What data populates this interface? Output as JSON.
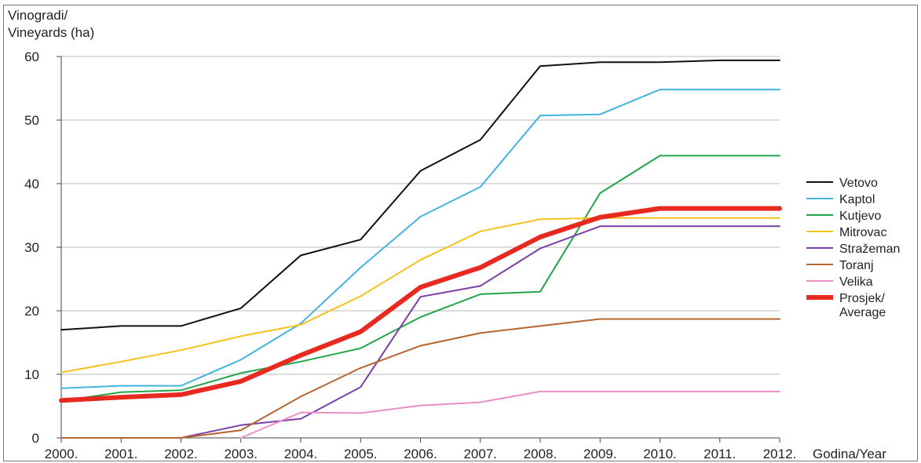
{
  "chart_data": {
    "type": "line",
    "ylabel_line1": "Vinogradi/",
    "ylabel_line2": "Vineyards (ha)",
    "xlabel": "Godina/Year",
    "ylim": [
      0,
      60
    ],
    "yticks": [
      0,
      10,
      20,
      30,
      40,
      50,
      60
    ],
    "grid": true,
    "legend_position": "right",
    "categories": [
      "2000.",
      "2001.",
      "2002.",
      "2003.",
      "2004.",
      "2005.",
      "2006.",
      "2007.",
      "2008.",
      "2009.",
      "2010.",
      "2011.",
      "2012."
    ],
    "series": [
      {
        "name": "Vetovo",
        "color": "#111111",
        "width": 2,
        "values": [
          17,
          17.6,
          17.6,
          20.4,
          28.7,
          31.2,
          42,
          46.9,
          58.5,
          59.1,
          59.1,
          59.4,
          59.4
        ]
      },
      {
        "name": "Kaptol",
        "color": "#43b3e0",
        "width": 2,
        "values": [
          7.8,
          8.2,
          8.2,
          12.3,
          18,
          26.8,
          34.8,
          39.5,
          50.7,
          50.9,
          54.8,
          54.8,
          54.8
        ]
      },
      {
        "name": "Kutjevo",
        "color": "#22a54a",
        "width": 2,
        "values": [
          5.8,
          7.2,
          7.5,
          10.2,
          12,
          14.1,
          19,
          22.6,
          23,
          38.5,
          44.4,
          44.4,
          44.4
        ]
      },
      {
        "name": "Mitrovac",
        "color": "#f4c21a",
        "width": 2,
        "values": [
          10.3,
          12,
          13.8,
          16,
          17.8,
          22.3,
          28,
          32.5,
          34.4,
          34.6,
          34.6,
          34.6,
          34.6
        ]
      },
      {
        "name": "Stražeman",
        "color": "#7b3fa6",
        "width": 2,
        "values": [
          0,
          0,
          0,
          2,
          3,
          8,
          22.2,
          23.9,
          29.8,
          33.3,
          33.3,
          33.3,
          33.3
        ]
      },
      {
        "name": "Toranj",
        "color": "#b5652d",
        "width": 2,
        "values": [
          0,
          0,
          0,
          1.2,
          6.5,
          11,
          14.5,
          16.5,
          17.6,
          18.7,
          18.7,
          18.7,
          18.7
        ]
      },
      {
        "name": "Velika",
        "color": "#e98fc4",
        "width": 2,
        "values": [
          null,
          null,
          null,
          0,
          4,
          3.9,
          5.1,
          5.6,
          7.3,
          7.3,
          7.3,
          7.3,
          7.3
        ]
      },
      {
        "name": "Prosjek/ Average",
        "color": "#e8291f",
        "width": 6,
        "values": [
          5.9,
          6.4,
          6.8,
          8.9,
          13,
          16.7,
          23.7,
          26.8,
          31.6,
          34.7,
          36.1,
          36.1,
          36.1
        ]
      }
    ]
  }
}
